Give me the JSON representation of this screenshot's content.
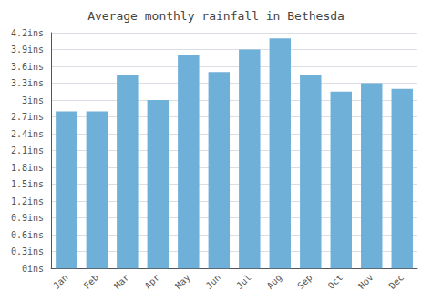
{
  "chart_data": {
    "type": "bar",
    "title": "Average monthly rainfall in Bethesda",
    "categories": [
      "Jan",
      "Feb",
      "Mar",
      "Apr",
      "May",
      "Jun",
      "Jul",
      "Aug",
      "Sep",
      "Oct",
      "Nov",
      "Dec"
    ],
    "values": [
      2.8,
      2.8,
      3.45,
      3.0,
      3.8,
      3.5,
      3.9,
      4.1,
      3.45,
      3.15,
      3.3,
      3.2
    ],
    "color": "#6eb0d8",
    "ylim": [
      0,
      4.2
    ],
    "yticks": [
      {
        "value": 0,
        "label": "0ins"
      },
      {
        "value": 0.3,
        "label": "0.3ins"
      },
      {
        "value": 0.6,
        "label": "0.6ins"
      },
      {
        "value": 0.9,
        "label": "0.9ins"
      },
      {
        "value": 1.2,
        "label": "1.2ins"
      },
      {
        "value": 1.5,
        "label": "1.5ins"
      },
      {
        "value": 1.8,
        "label": "1.8ins"
      },
      {
        "value": 2.1,
        "label": "2.1ins"
      },
      {
        "value": 2.4,
        "label": "2.4ins"
      },
      {
        "value": 2.7,
        "label": "2.7ins"
      },
      {
        "value": 3.0,
        "label": "3ins"
      },
      {
        "value": 3.3,
        "label": "3.3ins"
      },
      {
        "value": 3.6,
        "label": "3.6ins"
      },
      {
        "value": 3.9,
        "label": "3.9ins"
      },
      {
        "value": 4.2,
        "label": "4.2ins"
      }
    ],
    "grid": true
  }
}
